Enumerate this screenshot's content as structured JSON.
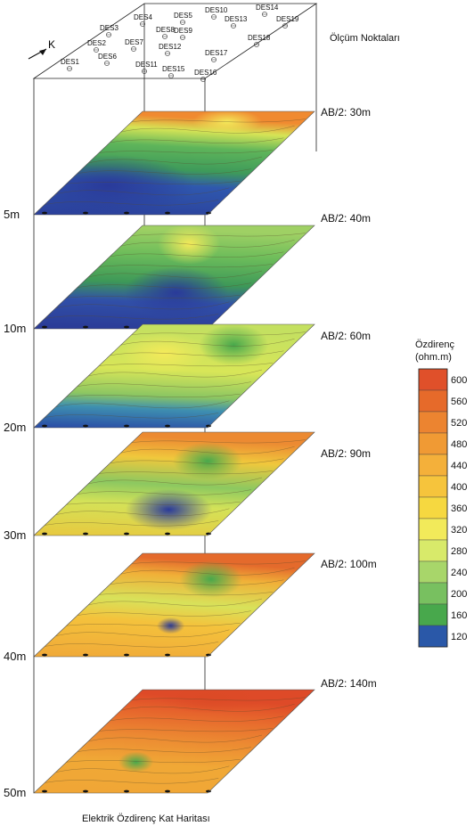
{
  "north_label": "K",
  "points_title": "Ölçüm Noktaları",
  "bottom_title": "Elektrik Özdirenç Kat Haritası",
  "legend": {
    "title": "Özdirenç",
    "unit": "(ohm.m)",
    "ticks": [
      "600",
      "560",
      "520",
      "480",
      "440",
      "400",
      "360",
      "320",
      "280",
      "240",
      "200",
      "160",
      "120"
    ],
    "colors": [
      "#e0502a",
      "#e66a2a",
      "#ec8430",
      "#f09a34",
      "#f4b03a",
      "#f6c43c",
      "#f6d840",
      "#f2ea5a",
      "#d8ea6a",
      "#a8d66a",
      "#78c060",
      "#48a84c",
      "#2a58a8"
    ]
  },
  "stations": [
    "DES1",
    "DES2",
    "DES3",
    "DES4",
    "DES5",
    "DES6",
    "DES7",
    "DES8",
    "DES9",
    "DES10",
    "DES11",
    "DES12",
    "DES13",
    "DES14",
    "DES15",
    "DES16",
    "DES17",
    "DES18",
    "DES19"
  ],
  "layers": [
    {
      "ab": "AB/2: 30m",
      "depth": "5m"
    },
    {
      "ab": "AB/2: 40m",
      "depth": "10m"
    },
    {
      "ab": "AB/2: 60m",
      "depth": "20m"
    },
    {
      "ab": "AB/2: 90m",
      "depth": "30m"
    },
    {
      "ab": "AB/2: 100m",
      "depth": "40m"
    },
    {
      "ab": "AB/2: 140m",
      "depth": "50m"
    }
  ]
}
